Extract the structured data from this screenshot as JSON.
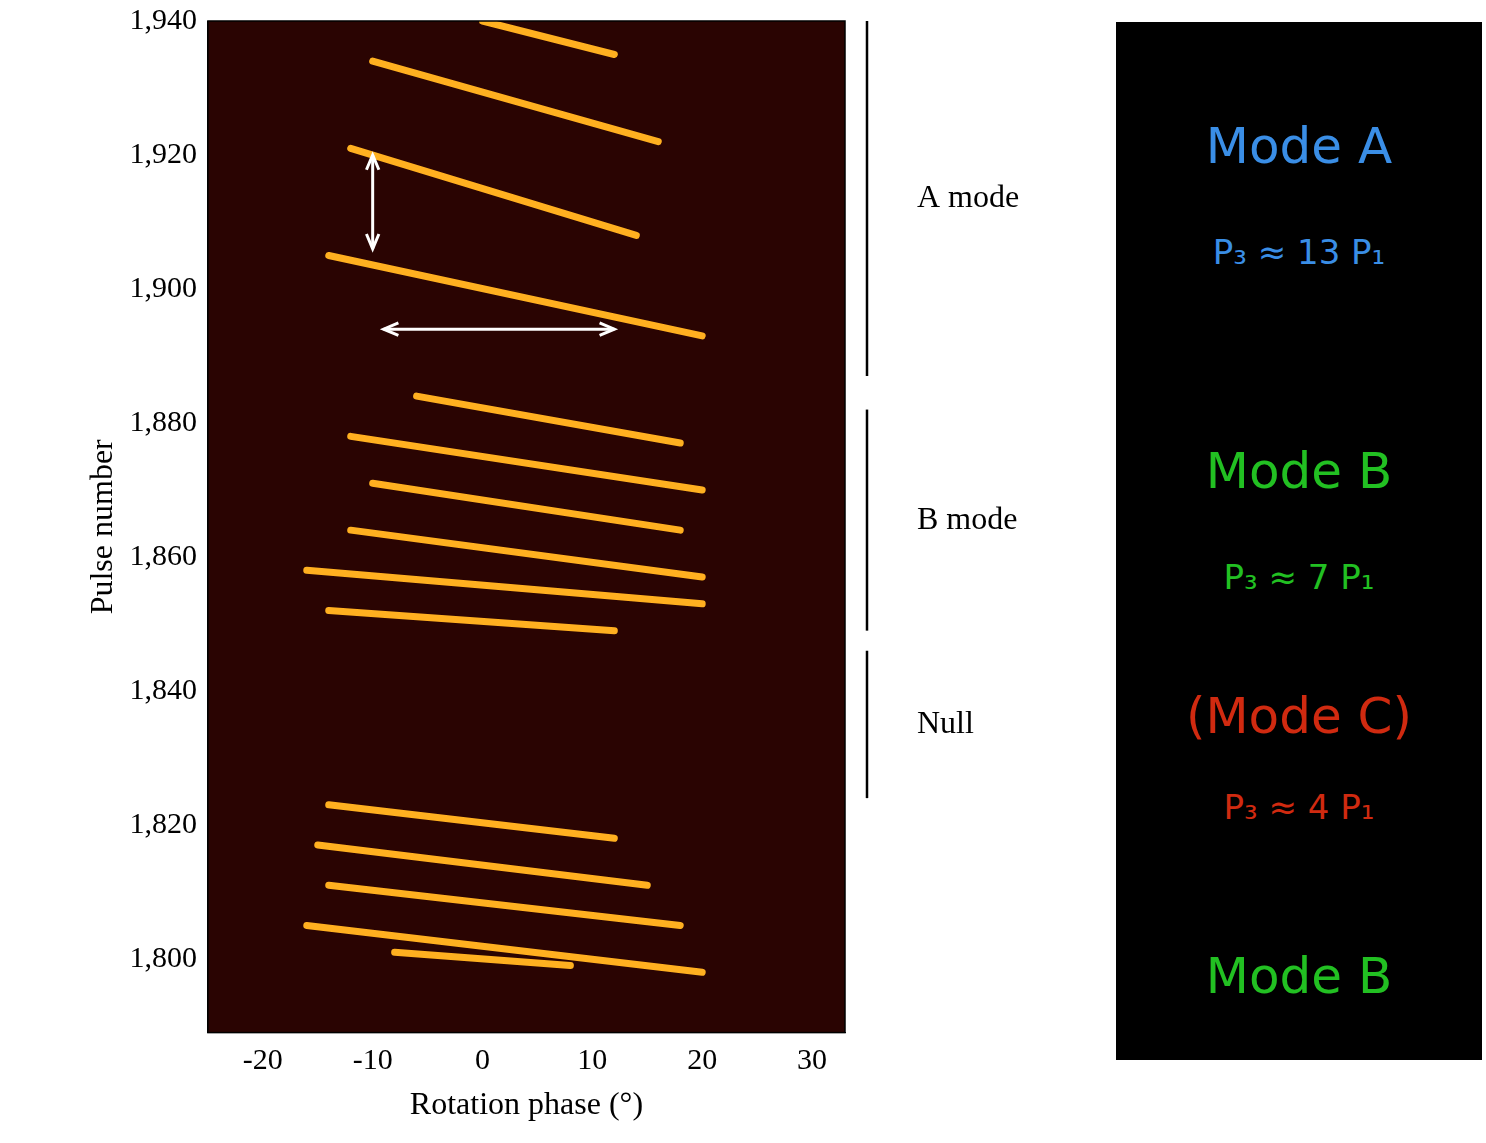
{
  "chart_data": {
    "type": "scatter",
    "x_label": "Rotation phase (°)",
    "y_label": "Pulse number",
    "xlim": [
      -25,
      33
    ],
    "xticks": [
      -20,
      -10,
      0,
      10,
      20,
      30
    ],
    "ylim": [
      1789,
      1940
    ],
    "yticks": [
      1800,
      1820,
      1840,
      1860,
      1880,
      1900,
      1920,
      1940
    ],
    "grid": false,
    "color": "#ffb020",
    "line_style": "solid",
    "drift_bands": [
      {
        "x": [
          -14,
          12
        ],
        "y": [
          1823,
          1818
        ]
      },
      {
        "x": [
          -15,
          15
        ],
        "y": [
          1817,
          1811
        ]
      },
      {
        "x": [
          -14,
          18
        ],
        "y": [
          1811,
          1805
        ]
      },
      {
        "x": [
          -16,
          20
        ],
        "y": [
          1805,
          1798
        ]
      },
      {
        "x": [
          -8,
          8
        ],
        "y": [
          1801,
          1799
        ]
      },
      {
        "x": [
          -14,
          12
        ],
        "y": [
          1852,
          1849
        ]
      },
      {
        "x": [
          -16,
          20
        ],
        "y": [
          1858,
          1853
        ]
      },
      {
        "x": [
          -12,
          20
        ],
        "y": [
          1864,
          1857
        ]
      },
      {
        "x": [
          -10,
          18
        ],
        "y": [
          1871,
          1864
        ]
      },
      {
        "x": [
          -12,
          20
        ],
        "y": [
          1878,
          1870
        ]
      },
      {
        "x": [
          -6,
          18
        ],
        "y": [
          1884,
          1877
        ]
      },
      {
        "x": [
          -14,
          20
        ],
        "y": [
          1905,
          1893
        ]
      },
      {
        "x": [
          -12,
          14
        ],
        "y": [
          1921,
          1908
        ]
      },
      {
        "x": [
          -10,
          16
        ],
        "y": [
          1934,
          1922
        ]
      },
      {
        "x": [
          0,
          12
        ],
        "y": [
          1940,
          1935
        ]
      }
    ],
    "arrows": [
      {
        "x": [
          -10,
          -10
        ],
        "y": [
          1906,
          1920
        ]
      },
      {
        "x": [
          -9,
          12
        ],
        "y": [
          1894,
          1894
        ]
      }
    ],
    "modes": [
      {
        "label": "A mode",
        "pulses": [
          1887,
          1940
        ]
      },
      {
        "label": "B mode",
        "pulses": [
          1849,
          1882
        ]
      },
      {
        "label": "Null",
        "pulses": [
          1824,
          1846
        ]
      }
    ]
  },
  "panel": {
    "entries": [
      {
        "text": "Mode A",
        "subtext": "P₃ ≈ 13 P₁",
        "color": "#3a8ee6"
      },
      {
        "text": "Mode B",
        "subtext": "P₃ ≈ 7 P₁",
        "color": "#22c022"
      },
      {
        "text": "(Mode C)",
        "subtext": "P₃ ≈ 4 P₁",
        "color": "#d02a10"
      },
      {
        "text": "Mode B",
        "color": "#22c022"
      }
    ]
  }
}
